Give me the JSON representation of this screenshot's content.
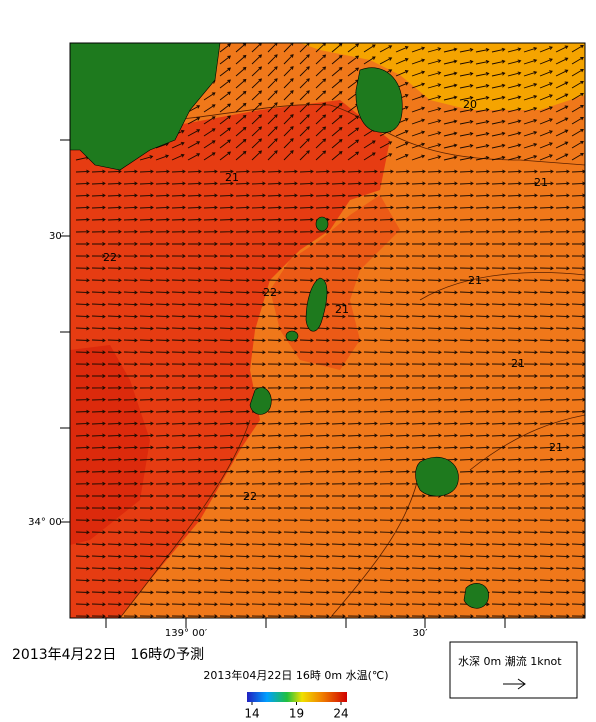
{
  "map": {
    "y_labels": [
      "30′",
      "34° 00′"
    ],
    "x_labels": [
      "139° 00′",
      "30′"
    ],
    "contour_labels": [
      "20",
      "21",
      "21",
      "22",
      "22",
      "21",
      "21",
      "21",
      "21",
      "22"
    ]
  },
  "caption": "2013年4月22日　16時の予測",
  "colorbar": {
    "title": "2013年04月22日 16時 0m 水温(℃)",
    "ticks": [
      14,
      19,
      24
    ]
  },
  "legend": {
    "text": "水深 0m 潮流 1knot"
  }
}
